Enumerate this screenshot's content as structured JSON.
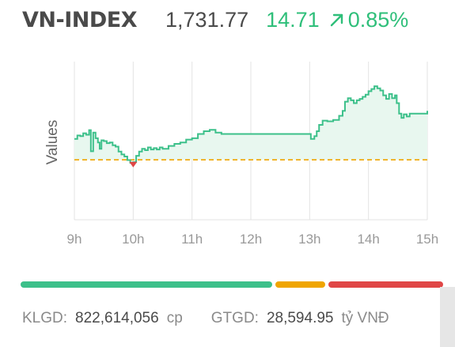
{
  "header": {
    "index_name": "VN-INDEX",
    "index_value": "1,731.77",
    "change_value": "14.71",
    "change_pct": "0.85%",
    "direction_icon": "arrow-up-right-icon",
    "up_color": "#2fbf7a"
  },
  "chart_data": {
    "type": "line",
    "title": "",
    "xlabel": "",
    "ylabel": "Values",
    "x_ticks": [
      "9h",
      "10h",
      "11h",
      "12h",
      "13h",
      "14h",
      "15h"
    ],
    "x_range_hours": [
      9,
      15
    ],
    "reference_line_label": "",
    "reference_value": 1717.06,
    "ylim": [
      1700,
      1745
    ],
    "grid_vertical": true,
    "series": [
      {
        "color": "#3cc08a",
        "fill_color": "#e8f7ef",
        "points": [
          [
            9.0,
            1723.0
          ],
          [
            9.05,
            1724.0
          ],
          [
            9.1,
            1723.8
          ],
          [
            9.15,
            1724.6
          ],
          [
            9.2,
            1724.2
          ],
          [
            9.25,
            1725.5
          ],
          [
            9.28,
            1719.5
          ],
          [
            9.32,
            1724.8
          ],
          [
            9.36,
            1723.2
          ],
          [
            9.4,
            1722.0
          ],
          [
            9.43,
            1720.2
          ],
          [
            9.46,
            1722.6
          ],
          [
            9.5,
            1722.4
          ],
          [
            9.55,
            1721.8
          ],
          [
            9.6,
            1722.0
          ],
          [
            9.65,
            1721.2
          ],
          [
            9.7,
            1720.8
          ],
          [
            9.75,
            1719.4
          ],
          [
            9.8,
            1718.6
          ],
          [
            9.85,
            1718.0
          ],
          [
            9.9,
            1717.0
          ],
          [
            9.95,
            1716.2
          ],
          [
            10.0,
            1716.4
          ],
          [
            10.05,
            1718.2
          ],
          [
            10.1,
            1719.4
          ],
          [
            10.15,
            1720.2
          ],
          [
            10.2,
            1719.8
          ],
          [
            10.25,
            1720.6
          ],
          [
            10.3,
            1720.0
          ],
          [
            10.35,
            1720.4
          ],
          [
            10.4,
            1720.0
          ],
          [
            10.45,
            1720.6
          ],
          [
            10.5,
            1720.2
          ],
          [
            10.6,
            1721.0
          ],
          [
            10.7,
            1721.6
          ],
          [
            10.8,
            1722.0
          ],
          [
            10.9,
            1722.8
          ],
          [
            11.0,
            1723.2
          ],
          [
            11.1,
            1724.4
          ],
          [
            11.2,
            1725.2
          ],
          [
            11.3,
            1725.6
          ],
          [
            11.4,
            1724.8
          ],
          [
            11.5,
            1724.4
          ],
          [
            12.0,
            1724.4
          ],
          [
            12.5,
            1724.4
          ],
          [
            13.0,
            1724.4
          ],
          [
            13.02,
            1723.0
          ],
          [
            13.08,
            1723.8
          ],
          [
            13.12,
            1725.2
          ],
          [
            13.16,
            1727.0
          ],
          [
            13.22,
            1728.2
          ],
          [
            13.3,
            1728.0
          ],
          [
            13.4,
            1728.4
          ],
          [
            13.5,
            1729.6
          ],
          [
            13.56,
            1731.0
          ],
          [
            13.6,
            1733.6
          ],
          [
            13.65,
            1734.6
          ],
          [
            13.7,
            1734.0
          ],
          [
            13.75,
            1733.2
          ],
          [
            13.8,
            1734.0
          ],
          [
            13.85,
            1734.4
          ],
          [
            13.9,
            1735.0
          ],
          [
            13.95,
            1735.6
          ],
          [
            14.0,
            1736.6
          ],
          [
            14.05,
            1737.2
          ],
          [
            14.1,
            1738.0
          ],
          [
            14.15,
            1737.4
          ],
          [
            14.2,
            1736.8
          ],
          [
            14.25,
            1735.4
          ],
          [
            14.3,
            1734.4
          ],
          [
            14.35,
            1735.8
          ],
          [
            14.4,
            1734.6
          ],
          [
            14.45,
            1735.4
          ],
          [
            14.48,
            1733.2
          ],
          [
            14.52,
            1730.2
          ],
          [
            14.56,
            1729.0
          ],
          [
            14.6,
            1730.0
          ],
          [
            14.65,
            1729.4
          ],
          [
            14.7,
            1730.2
          ],
          [
            15.0,
            1731.0
          ]
        ]
      }
    ],
    "low_marker": {
      "x": 10.0,
      "y": 1715.8,
      "color": "#e04646"
    },
    "reference_color": "#f0a500",
    "grid_color": "#e3e3e3"
  },
  "breadth": {
    "segments": [
      {
        "name": "advancers",
        "fraction": 0.605,
        "color": "#3cc08a"
      },
      {
        "name": "unchanged",
        "fraction": 0.12,
        "color": "#f0a500"
      },
      {
        "name": "decliners",
        "fraction": 0.275,
        "color": "#e04646"
      }
    ]
  },
  "footer": {
    "volume_label": "KLGD:",
    "volume_value": "822,614,056",
    "volume_unit": "cp",
    "value_label": "GTGD:",
    "value_value": "28,594.95",
    "value_unit": "tỷ VNĐ"
  }
}
